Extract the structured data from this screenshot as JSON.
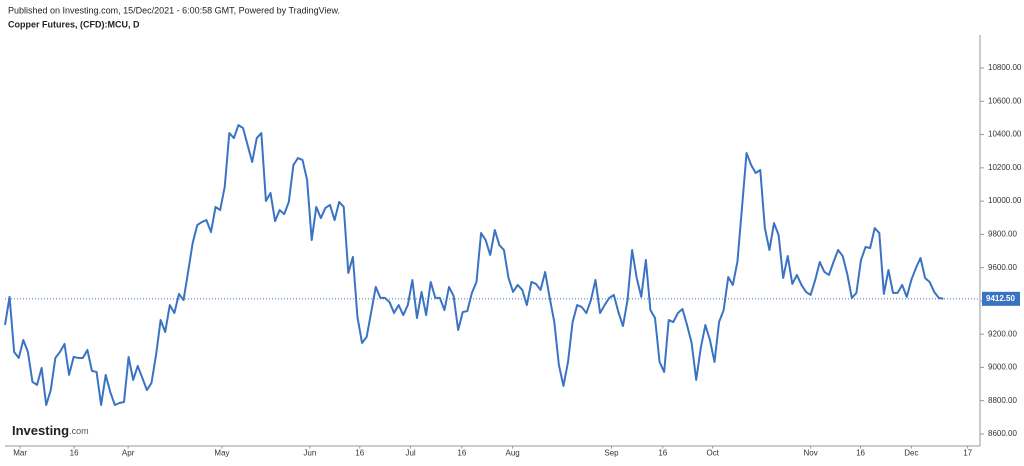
{
  "header": {
    "published": "Published on Investing.com, 15/Dec/2021 - 6:00:58 GMT, Powered by TradingView.",
    "symbol": "Copper Futures, (CFD):MCU, D"
  },
  "logo": {
    "brand": "Investing",
    "suffix": ".com"
  },
  "chart_data": {
    "type": "line",
    "color": "#3a73c4",
    "xlim": [
      0,
      213
    ],
    "ylim": [
      8530,
      11000
    ],
    "xticks": [
      {
        "value": 3.3,
        "label": "Mar"
      },
      {
        "value": 15.1,
        "label": "16"
      },
      {
        "value": 26.9,
        "label": "Apr"
      },
      {
        "value": 47.4,
        "label": "May"
      },
      {
        "value": 66.6,
        "label": "Jun"
      },
      {
        "value": 77.5,
        "label": "16"
      },
      {
        "value": 88.6,
        "label": "Jul"
      },
      {
        "value": 99.8,
        "label": "16"
      },
      {
        "value": 110.9,
        "label": "Aug"
      },
      {
        "value": 132.5,
        "label": "Sep"
      },
      {
        "value": 143.7,
        "label": "16"
      },
      {
        "value": 154.6,
        "label": "Oct"
      },
      {
        "value": 176.0,
        "label": "Nov"
      },
      {
        "value": 186.9,
        "label": "16"
      },
      {
        "value": 198.0,
        "label": "Dec"
      },
      {
        "value": 210.3,
        "label": "17"
      }
    ],
    "yticks": [
      {
        "value": 8600,
        "label": "8600.00"
      },
      {
        "value": 8800,
        "label": "8800.00"
      },
      {
        "value": 9000,
        "label": "9000.00"
      },
      {
        "value": 9200,
        "label": "9200.00"
      },
      {
        "value": 9400,
        "label": "9400.00"
      },
      {
        "value": 9600,
        "label": "9600.00"
      },
      {
        "value": 9800,
        "label": "9800.00"
      },
      {
        "value": 10000,
        "label": "10000.00"
      },
      {
        "value": 10200,
        "label": "10200.00"
      },
      {
        "value": 10400,
        "label": "10400.00"
      },
      {
        "value": 10600,
        "label": "10600.00"
      },
      {
        "value": 10800,
        "label": "10800.00"
      }
    ],
    "last_price": 9412.5,
    "last_price_label": "9412.50",
    "values": [
      9255,
      9424,
      9093,
      9057,
      9165,
      9093,
      8913,
      8895,
      8997,
      8774,
      8864,
      9057,
      9093,
      9141,
      8955,
      9063,
      9057,
      9057,
      9105,
      8979,
      8973,
      8774,
      8955,
      8852,
      8774,
      8786,
      8792,
      9063,
      8925,
      9009,
      8937,
      8864,
      8907,
      9075,
      9285,
      9213,
      9375,
      9327,
      9442,
      9405,
      9574,
      9748,
      9856,
      9874,
      9886,
      9814,
      9965,
      9946,
      10085,
      10409,
      10379,
      10457,
      10439,
      10337,
      10235,
      10379,
      10409,
      10001,
      10049,
      9880,
      9946,
      9922,
      9995,
      10217,
      10259,
      10247,
      10127,
      9766,
      9965,
      9898,
      9959,
      9977,
      9886,
      9995,
      9965,
      9568,
      9664,
      9303,
      9147,
      9183,
      9333,
      9484,
      9418,
      9418,
      9393,
      9327,
      9375,
      9315,
      9375,
      9526,
      9297,
      9454,
      9315,
      9514,
      9418,
      9418,
      9345,
      9484,
      9430,
      9225,
      9333,
      9339,
      9448,
      9514,
      9808,
      9766,
      9676,
      9826,
      9736,
      9706,
      9538,
      9454,
      9496,
      9466,
      9375,
      9514,
      9502,
      9466,
      9574,
      9418,
      9273,
      9015,
      8889,
      9033,
      9273,
      9375,
      9363,
      9327,
      9405,
      9526,
      9327,
      9375,
      9418,
      9436,
      9333,
      9249,
      9405,
      9706,
      9538,
      9424,
      9646,
      9345,
      9297,
      9033,
      8973,
      9285,
      9273,
      9327,
      9351,
      9255,
      9147,
      8925,
      9117,
      9255,
      9165,
      9033,
      9273,
      9345,
      9544,
      9496,
      9634,
      9959,
      10289,
      10217,
      10169,
      10187,
      9838,
      9706,
      9868,
      9796,
      9538,
      9670,
      9502,
      9556,
      9496,
      9454,
      9436,
      9526,
      9634,
      9574,
      9556,
      9634,
      9706,
      9670,
      9562,
      9418,
      9448,
      9646,
      9724,
      9718,
      9838,
      9808,
      9442,
      9586,
      9448,
      9448,
      9496,
      9424,
      9526,
      9598,
      9658,
      9538,
      9514,
      9454,
      9418,
      9412.5
    ]
  }
}
